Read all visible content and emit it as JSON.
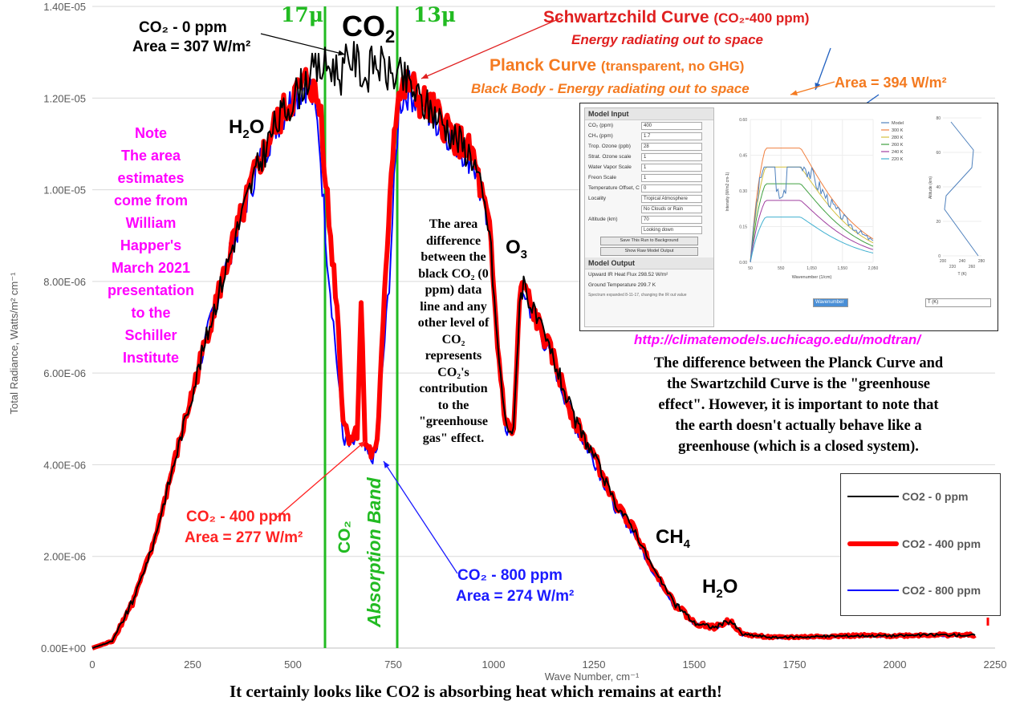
{
  "chart_data": {
    "type": "line",
    "xlabel": "Wave Number, cm⁻¹",
    "ylabel": "Total Radiance, Watts/m² cm⁻¹",
    "xlim": [
      0,
      2250
    ],
    "ylim": [
      0,
      1.4e-05
    ],
    "x_ticks": [
      "0",
      "250",
      "500",
      "750",
      "1000",
      "1250",
      "1500",
      "1750",
      "2000",
      "2250"
    ],
    "y_ticks": [
      "0.00E+00",
      "2.00E-06",
      "4.00E-06",
      "6.00E-06",
      "8.00E-06",
      "1.00E-05",
      "1.20E-05",
      "1.40E-05"
    ],
    "grid": "horizontal",
    "legend_position": "bottom-right",
    "series": [
      {
        "name": "CO2 - 0 ppm",
        "color": "#000000",
        "width": 2,
        "points": [
          [
            0,
            0
          ],
          [
            50,
            1.5e-07
          ],
          [
            100,
            1e-06
          ],
          [
            150,
            2.2e-06
          ],
          [
            200,
            3.9e-06
          ],
          [
            250,
            5.6e-06
          ],
          [
            300,
            7.3e-06
          ],
          [
            350,
            8.8e-06
          ],
          [
            400,
            1.02e-05
          ],
          [
            450,
            1.13e-05
          ],
          [
            500,
            1.2e-05
          ],
          [
            540,
            1.25e-05
          ],
          [
            580,
            1.27e-05
          ],
          [
            600,
            1.27e-05
          ],
          [
            620,
            1.25e-05
          ],
          [
            640,
            1.29e-05
          ],
          [
            660,
            1.28e-05
          ],
          [
            680,
            1.24e-05
          ],
          [
            700,
            1.28e-05
          ],
          [
            720,
            1.27e-05
          ],
          [
            740,
            1.25e-05
          ],
          [
            760,
            1.25e-05
          ],
          [
            790,
            1.23e-05
          ],
          [
            820,
            1.19e-05
          ],
          [
            850,
            1.17e-05
          ],
          [
            900,
            1.12e-05
          ],
          [
            950,
            1.07e-05
          ],
          [
            990,
            9.1e-06
          ],
          [
            1010,
            6.6e-06
          ],
          [
            1030,
            4.9e-06
          ],
          [
            1050,
            4.7e-06
          ],
          [
            1065,
            7.6e-06
          ],
          [
            1075,
            8e-06
          ],
          [
            1100,
            7.3e-06
          ],
          [
            1150,
            6.3e-06
          ],
          [
            1200,
            5e-06
          ],
          [
            1250,
            4.2e-06
          ],
          [
            1300,
            3.2e-06
          ],
          [
            1350,
            2.6e-06
          ],
          [
            1400,
            1.7e-06
          ],
          [
            1450,
            1e-06
          ],
          [
            1500,
            5.5e-07
          ],
          [
            1550,
            4.5e-07
          ],
          [
            1590,
            6e-07
          ],
          [
            1620,
            3e-07
          ],
          [
            1700,
            2.3e-07
          ],
          [
            1800,
            2.5e-07
          ],
          [
            1900,
            2.7e-07
          ],
          [
            2000,
            2.7e-07
          ],
          [
            2100,
            2.9e-07
          ],
          [
            2200,
            2.8e-07
          ]
        ]
      },
      {
        "name": "CO2 - 400 ppm",
        "color": "#ff0000",
        "width": 6,
        "points": [
          [
            0,
            0
          ],
          [
            50,
            1.5e-07
          ],
          [
            100,
            1e-06
          ],
          [
            150,
            2.2e-06
          ],
          [
            200,
            3.9e-06
          ],
          [
            250,
            5.6e-06
          ],
          [
            300,
            7.3e-06
          ],
          [
            350,
            8.8e-06
          ],
          [
            400,
            1.02e-05
          ],
          [
            450,
            1.13e-05
          ],
          [
            500,
            1.2e-05
          ],
          [
            540,
            1.24e-05
          ],
          [
            570,
            1.17e-05
          ],
          [
            590,
            9.3e-06
          ],
          [
            610,
            7.5e-06
          ],
          [
            625,
            5e-06
          ],
          [
            640,
            4.6e-06
          ],
          [
            660,
            4.7e-06
          ],
          [
            670,
            7.5e-06
          ],
          [
            680,
            4.6e-06
          ],
          [
            695,
            4.2e-06
          ],
          [
            710,
            4.5e-06
          ],
          [
            725,
            7e-06
          ],
          [
            735,
            8.8e-06
          ],
          [
            745,
            1.05e-05
          ],
          [
            760,
            1.2e-05
          ],
          [
            790,
            1.23e-05
          ],
          [
            820,
            1.19e-05
          ],
          [
            850,
            1.17e-05
          ],
          [
            900,
            1.12e-05
          ],
          [
            950,
            1.07e-05
          ],
          [
            990,
            9.1e-06
          ],
          [
            1010,
            6.6e-06
          ],
          [
            1030,
            4.9e-06
          ],
          [
            1050,
            4.7e-06
          ],
          [
            1065,
            7.6e-06
          ],
          [
            1075,
            7.9e-06
          ],
          [
            1100,
            7.3e-06
          ],
          [
            1150,
            6.3e-06
          ],
          [
            1200,
            5e-06
          ],
          [
            1250,
            4.2e-06
          ],
          [
            1300,
            3.2e-06
          ],
          [
            1350,
            2.6e-06
          ],
          [
            1400,
            1.7e-06
          ],
          [
            1450,
            1e-06
          ],
          [
            1500,
            5.5e-07
          ],
          [
            1550,
            4.5e-07
          ],
          [
            1590,
            6e-07
          ],
          [
            1620,
            3e-07
          ],
          [
            1700,
            2.3e-07
          ],
          [
            1800,
            2.5e-07
          ],
          [
            1900,
            2.7e-07
          ],
          [
            2000,
            2.7e-07
          ],
          [
            2100,
            2.9e-07
          ],
          [
            2200,
            2.8e-07
          ]
        ]
      },
      {
        "name": "CO2 - 800 ppm",
        "color": "#0000ff",
        "width": 2,
        "points": [
          [
            0,
            0
          ],
          [
            50,
            1.5e-07
          ],
          [
            100,
            1e-06
          ],
          [
            150,
            2.2e-06
          ],
          [
            200,
            3.9e-06
          ],
          [
            250,
            5.6e-06
          ],
          [
            300,
            7.3e-06
          ],
          [
            350,
            8.8e-06
          ],
          [
            400,
            1.02e-05
          ],
          [
            450,
            1.13e-05
          ],
          [
            500,
            1.2e-05
          ],
          [
            540,
            1.24e-05
          ],
          [
            565,
            1.12e-05
          ],
          [
            585,
            8.6e-06
          ],
          [
            605,
            6.7e-06
          ],
          [
            625,
            4.6e-06
          ],
          [
            640,
            4.4e-06
          ],
          [
            660,
            4.5e-06
          ],
          [
            670,
            7.2e-06
          ],
          [
            680,
            4.3e-06
          ],
          [
            695,
            4.1e-06
          ],
          [
            710,
            4.3e-06
          ],
          [
            725,
            6.3e-06
          ],
          [
            740,
            8e-06
          ],
          [
            752,
            1e-05
          ],
          [
            765,
            1.19e-05
          ],
          [
            790,
            1.22e-05
          ],
          [
            820,
            1.18e-05
          ],
          [
            850,
            1.16e-05
          ],
          [
            900,
            1.11e-05
          ],
          [
            950,
            1.06e-05
          ],
          [
            990,
            9e-06
          ],
          [
            1010,
            6.5e-06
          ],
          [
            1030,
            4.8e-06
          ],
          [
            1050,
            4.6e-06
          ],
          [
            1065,
            7.5e-06
          ],
          [
            1075,
            7.8e-06
          ],
          [
            1100,
            7.2e-06
          ],
          [
            1150,
            6.2e-06
          ],
          [
            1200,
            4.9e-06
          ],
          [
            1250,
            4.1e-06
          ],
          [
            1300,
            3.1e-06
          ],
          [
            1350,
            2.5e-06
          ],
          [
            1400,
            1.6e-06
          ],
          [
            1450,
            9.5e-07
          ],
          [
            1500,
            5.2e-07
          ],
          [
            1550,
            4.3e-07
          ],
          [
            1590,
            5.8e-07
          ],
          [
            1620,
            2.9e-07
          ],
          [
            1700,
            2.2e-07
          ],
          [
            1800,
            2.4e-07
          ],
          [
            1900,
            2.6e-07
          ],
          [
            2000,
            2.6e-07
          ],
          [
            2100,
            2.8e-07
          ],
          [
            2200,
            2.7e-07
          ]
        ]
      }
    ],
    "vertical_lines": [
      {
        "x": 580,
        "label": "17μ"
      },
      {
        "x": 760,
        "label": "13μ"
      }
    ]
  },
  "annotations": {
    "mu17": "17μ",
    "mu13": "13μ",
    "co2_big": "CO",
    "co2_big_sub": "2",
    "h2o_left": "H",
    "h2o_left_sub": "2",
    "h2o_left_tail": "O",
    "o3": "O",
    "o3_sub": "3",
    "ch4": "CH",
    "ch4_sub": "4",
    "h2o_right": "H",
    "h2o_right_sub": "2",
    "h2o_right_tail": "O",
    "co2_0_line1": "CO₂ - 0 ppm",
    "co2_0_line2": "Area = 307 W/m²",
    "co2_400_line1": "CO₂ - 400 ppm",
    "co2_400_line2": "Area = 277 W/m²",
    "co2_800_line1": "CO₂ - 800 ppm",
    "co2_800_line2": "Area = 274 W/m²",
    "abs_band_1": "CO₂",
    "abs_band_2": "Absorption Band",
    "schwartzchild": "Schwartzchild Curve",
    "schwartzchild_paren": "(CO₂-400 ppm)",
    "schwartzchild_sub": "Energy radiating out to space",
    "planck": "Planck Curve",
    "planck_paren": "(transparent, no GHG)",
    "planck_sub": "Black Body - Energy radiating out to space",
    "area394": "Area = 394 W/m²",
    "url": "http://climatemodels.uchicago.edu/modtran/",
    "bottom_caption": "It certainly looks like CO2 is absorbing heat which remains at earth!",
    "note_lines": [
      "Note",
      "The area",
      "estimates",
      "come from",
      "William",
      "Happer's",
      "March 2021",
      "presentation",
      "to the",
      "Schiller",
      "Institute"
    ],
    "mid_lines": [
      "The area",
      "difference",
      "between the",
      "black CO₂ (0",
      "ppm) data",
      "line  and any",
      "other level of",
      "CO₂",
      "represents",
      "CO₂'s",
      "contribution",
      "to the",
      "\"greenhouse",
      "gas\" effect."
    ],
    "right_lines": [
      "The difference between the Planck Curve and",
      "the Swartzchild Curve is the \"greenhouse",
      "effect\". However, it is important to note that",
      "the earth doesn't actually behave like a",
      "greenhouse (which is a closed system)."
    ]
  },
  "legend": [
    "CO2 - 0 ppm",
    "CO2 - 400 ppm",
    "CO2 - 800 ppm"
  ],
  "inset": {
    "panel_title": "Model Input",
    "rows": [
      {
        "label": "CO₂ (ppm)",
        "value": "400"
      },
      {
        "label": "CH₄ (ppm)",
        "value": "1.7"
      },
      {
        "label": "Trop. Ozone (ppb)",
        "value": "28"
      },
      {
        "label": "Strat. Ozone scale",
        "value": "1"
      },
      {
        "label": "Water Vapor Scale",
        "value": "1"
      },
      {
        "label": "Freon Scale",
        "value": "1"
      },
      {
        "label": "Temperature Offset, C",
        "value": "0"
      },
      {
        "label": "Locality",
        "value": "Tropical Atmosphere"
      },
      {
        "label": "",
        "value": "No Clouds or Rain"
      },
      {
        "label": "Altitude (km)",
        "value": "70"
      },
      {
        "label": "",
        "value": "Looking down"
      }
    ],
    "btn1": "Save This Run to Background",
    "btn2": "Show Raw Model Output",
    "output_title": "Model Output",
    "out1": "Upward IR Heat Flux  298.52  W/m²",
    "out2": "Ground Temperature  299.7  K",
    "footnote": "Spectrum expanded 8-11-17, changing the IR out value",
    "legend_items": [
      "Model",
      "300 K",
      "280 K",
      "260 K",
      "240 K",
      "220 K"
    ],
    "legend_colors": [
      "#4f81bd",
      "#f08040",
      "#d4c040",
      "#40a040",
      "#a040a0",
      "#40b0d0"
    ],
    "y_ticks": [
      "0.60",
      "0.45",
      "0.30",
      "0.15",
      "0.00"
    ],
    "x_ticks": [
      "50",
      "550",
      "1,050",
      "1,550",
      "2,050"
    ],
    "xlabel": "Wavenumber (1/cm)",
    "ylabel": "Intensity (W/m2 cm-1)",
    "alt_ticks": [
      "80",
      "60",
      "40",
      "20",
      "0"
    ],
    "alt_xticks": [
      "200",
      "240",
      "280"
    ],
    "alt_xticks2": [
      "220",
      "260"
    ],
    "alt_ylabel": "Altitude (km)",
    "alt_xlabel": "T (K)",
    "select1": "Wavenumber",
    "select2": "T (K)"
  }
}
